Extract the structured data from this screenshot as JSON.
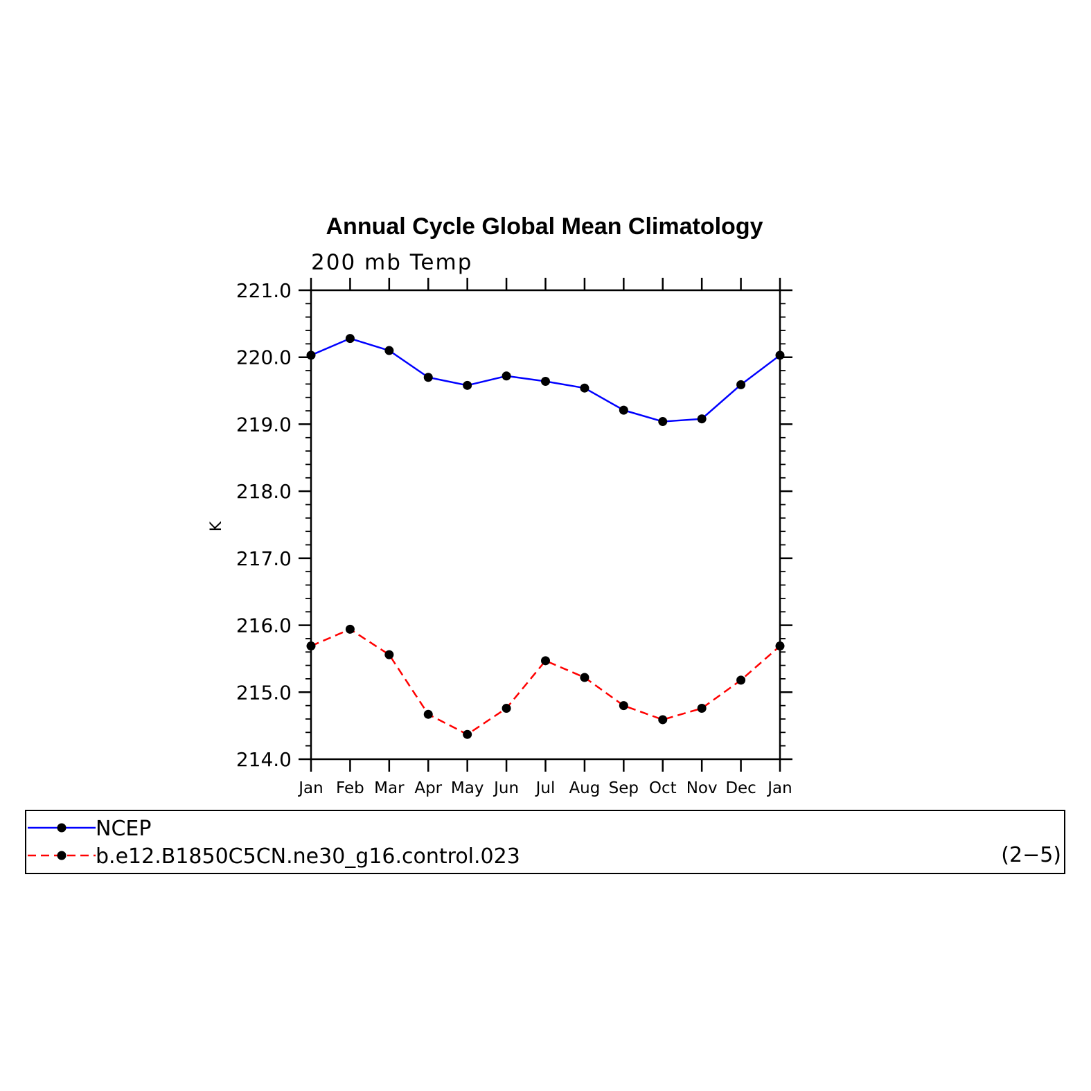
{
  "chart_data": {
    "type": "line",
    "title": "Annual Cycle Global Mean Climatology",
    "subtitle": "200 mb Temp",
    "ylabel": "K",
    "xlabel": "",
    "categories": [
      "Jan",
      "Feb",
      "Mar",
      "Apr",
      "May",
      "Jun",
      "Jul",
      "Aug",
      "Sep",
      "Oct",
      "Nov",
      "Dec",
      "Jan"
    ],
    "ylim": [
      214.0,
      221.0
    ],
    "yticks": [
      "214.0",
      "215.0",
      "216.0",
      "217.0",
      "218.0",
      "219.0",
      "220.0",
      "221.0"
    ],
    "grid": false,
    "legend_position": "bottom",
    "series": [
      {
        "name": "NCEP",
        "color": "#0000ff",
        "dash": "solid",
        "values": [
          220.03,
          220.28,
          220.1,
          219.7,
          219.58,
          219.72,
          219.64,
          219.54,
          219.21,
          219.04,
          219.08,
          219.59,
          220.03
        ]
      },
      {
        "name": "b.e12.B1850C5CN.ne30_g16.control.023",
        "color": "#ff0000",
        "dash": "dashed",
        "values": [
          215.69,
          215.94,
          215.56,
          214.67,
          214.37,
          214.76,
          215.47,
          215.22,
          214.8,
          214.59,
          214.76,
          215.18,
          215.69
        ]
      }
    ],
    "marker_color": "#000000",
    "panel_label": "(2−5)"
  }
}
